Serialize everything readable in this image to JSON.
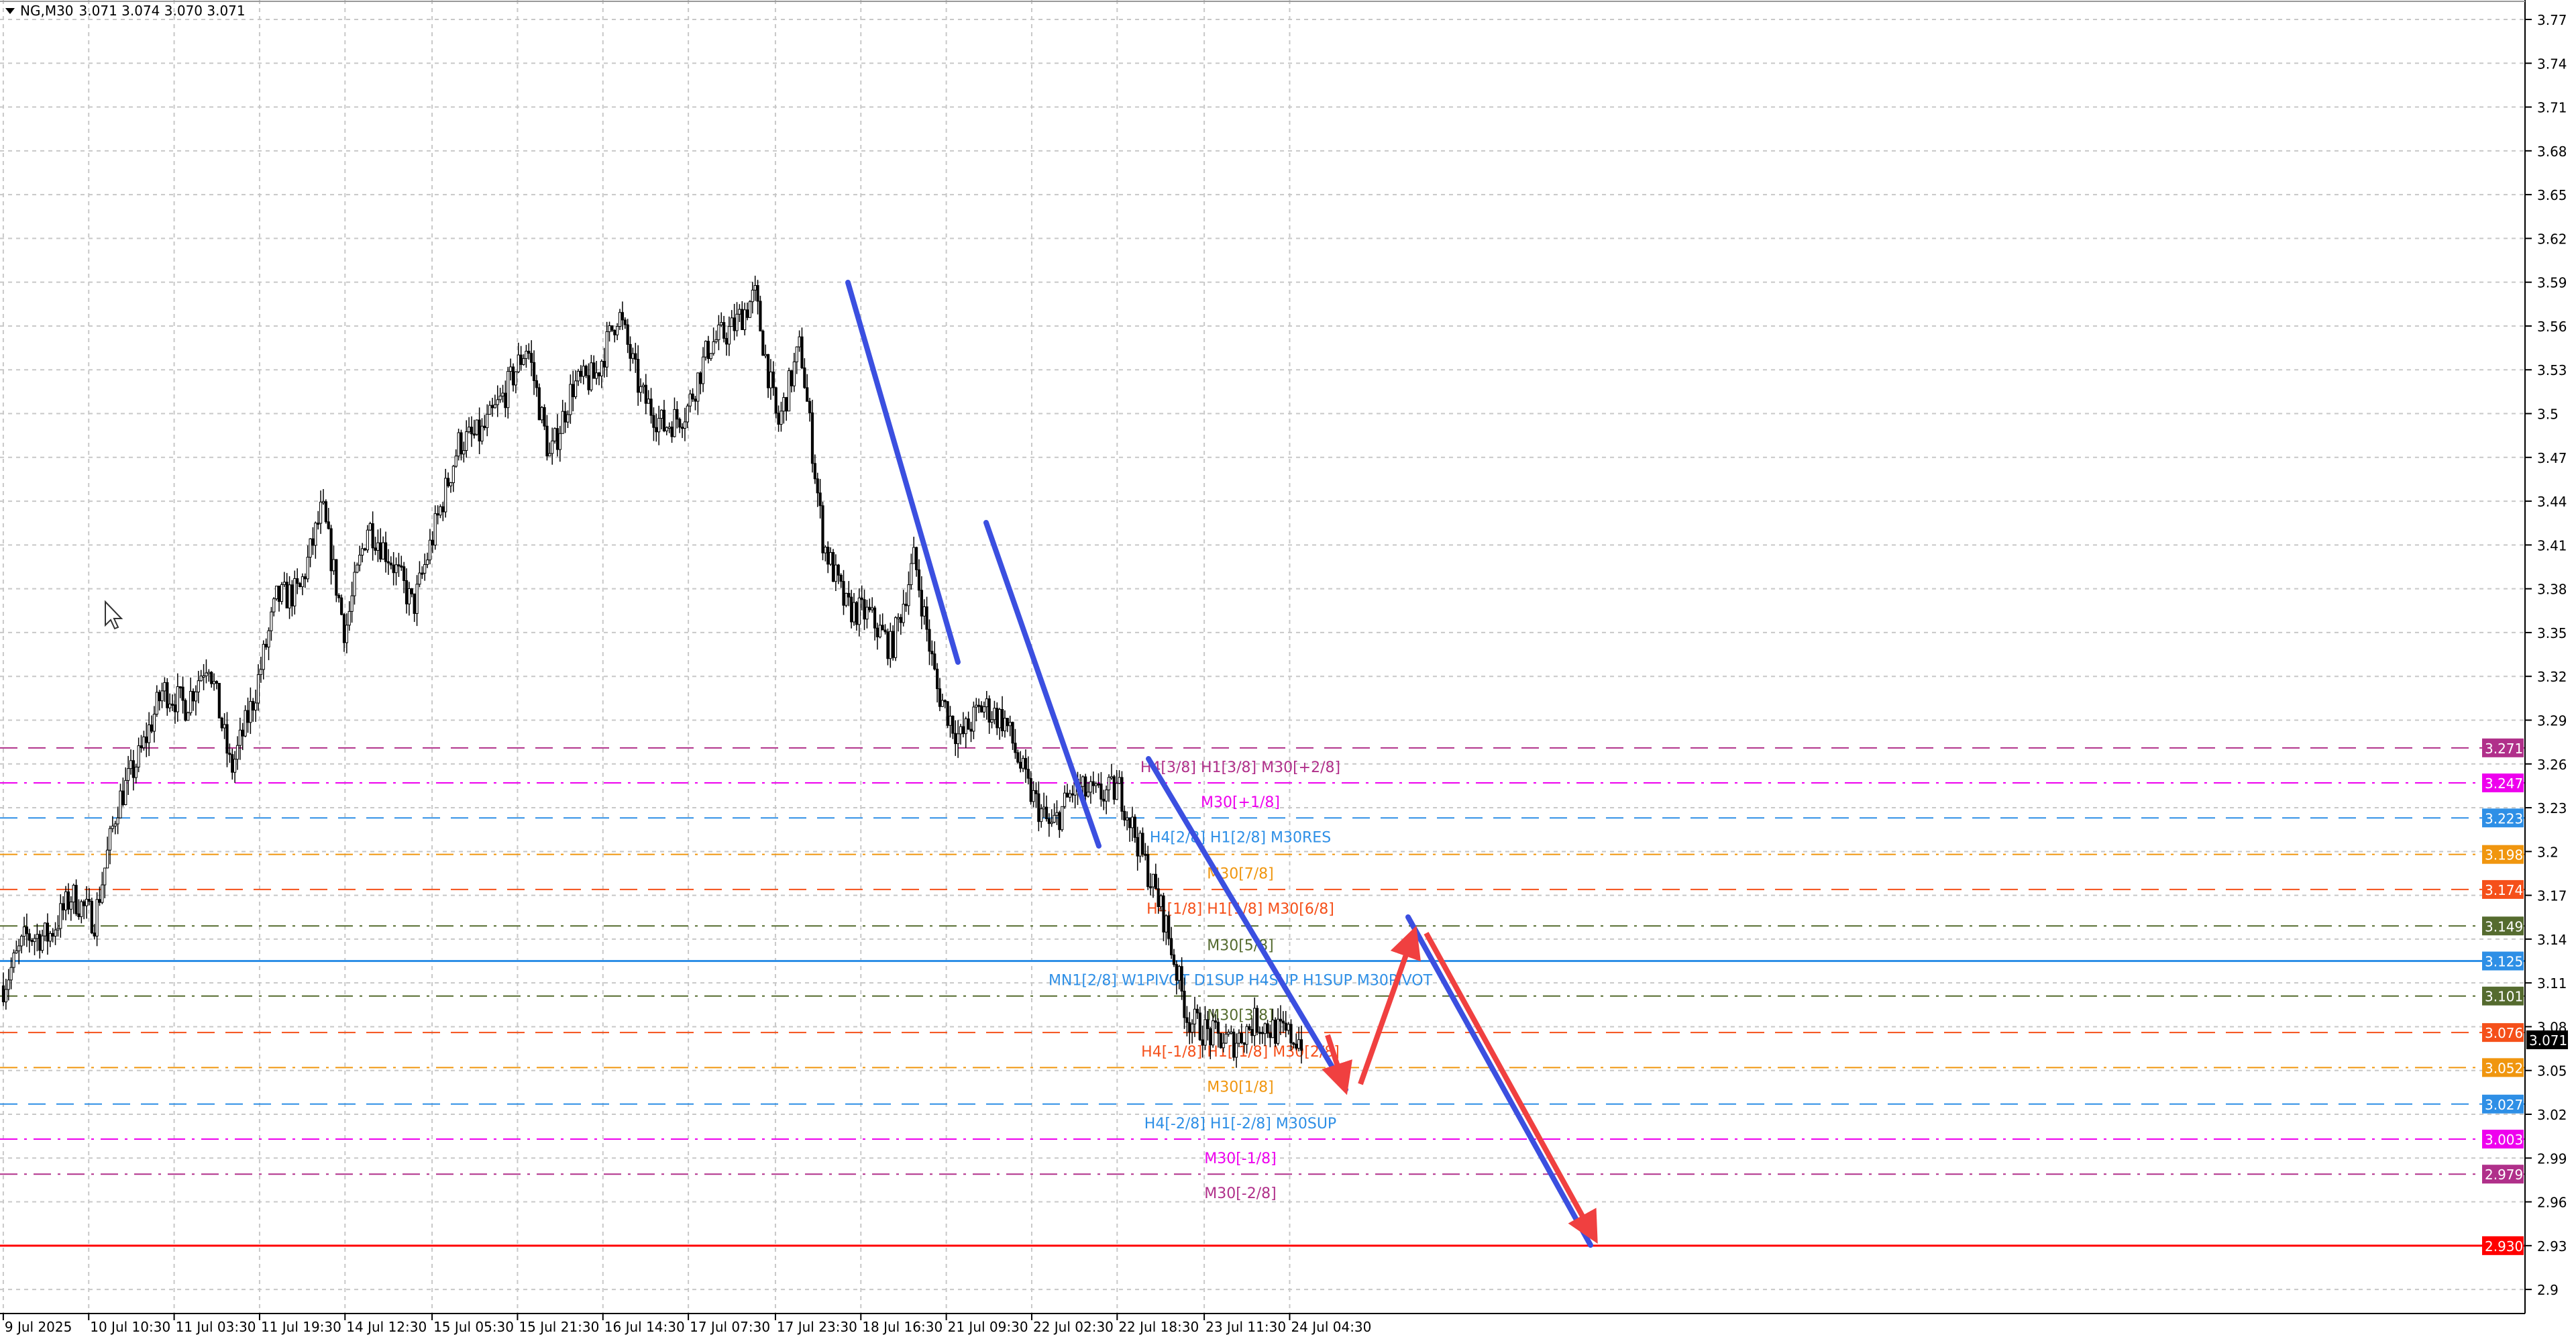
{
  "header": {
    "symbol": "NG,M30",
    "ohlc": "3.071 3.074 3.070 3.071"
  },
  "chart_data": {
    "type": "candlestick",
    "symbol": "NG",
    "timeframe": "M30",
    "ylim": [
      2.885,
      3.785
    ],
    "y_ticks": [
      3.77,
      3.74,
      3.71,
      3.68,
      3.65,
      3.62,
      3.59,
      3.56,
      3.53,
      3.5,
      3.47,
      3.44,
      3.41,
      3.38,
      3.35,
      3.32,
      3.29,
      3.26,
      3.23,
      3.2,
      3.17,
      3.14,
      3.11,
      3.08,
      3.05,
      3.02,
      2.99,
      2.96,
      2.93,
      2.9
    ],
    "x_ticks": [
      "9 Jul 2025",
      "10 Jul 10:30",
      "11 Jul 03:30",
      "11 Jul 19:30",
      "14 Jul 12:30",
      "15 Jul 05:30",
      "15 Jul 21:30",
      "16 Jul 14:30",
      "17 Jul 07:30",
      "17 Jul 23:30",
      "18 Jul 16:30",
      "21 Jul 09:30",
      "22 Jul 02:30",
      "22 Jul 18:30",
      "23 Jul 11:30",
      "24 Jul 04:30"
    ],
    "grid": true,
    "current_price": 3.071,
    "approx_close_path": [
      3.108,
      3.142,
      3.142,
      3.17,
      3.153,
      3.232,
      3.266,
      3.311,
      3.3,
      3.333,
      3.255,
      3.305,
      3.373,
      3.378,
      3.435,
      3.35,
      3.424,
      3.401,
      3.367,
      3.424,
      3.48,
      3.486,
      3.513,
      3.547,
      3.469,
      3.519,
      3.525,
      3.57,
      3.513,
      3.491,
      3.502,
      3.547,
      3.558,
      3.581,
      3.491,
      3.547,
      3.412,
      3.367,
      3.362,
      3.339,
      3.401,
      3.311,
      3.277,
      3.3,
      3.289,
      3.243,
      3.215,
      3.243,
      3.238,
      3.243,
      3.198,
      3.153,
      3.086,
      3.074,
      3.069,
      3.084,
      3.076,
      3.071
    ],
    "levels": [
      {
        "price": 3.271,
        "label": "H4[3/8] H1[3/8] M30[+2/8]",
        "color": "#b0308a",
        "style": "dash"
      },
      {
        "price": 3.247,
        "label": "M30[+1/8]",
        "color": "#ee00ee",
        "style": "dashdot"
      },
      {
        "price": 3.223,
        "label": "H4[2/8] H1[2/8] M30RES",
        "color": "#2e8fe6",
        "style": "dash"
      },
      {
        "price": 3.198,
        "label": "M30[7/8]",
        "color": "#f0960f",
        "style": "dashdot"
      },
      {
        "price": 3.174,
        "label": "H4[1/8] H1[1/8] M30[6/8]",
        "color": "#f5501a",
        "style": "dash"
      },
      {
        "price": 3.149,
        "label": "M30[5/8]",
        "color": "#556b2f",
        "style": "dashdot"
      },
      {
        "price": 3.125,
        "label": "MN1[2/8] W1PIVOT D1SUP H4SUP H1SUP M30PIVOT",
        "color": "#2e8fe6",
        "style": "solid"
      },
      {
        "price": 3.101,
        "label": "M30[3/8]",
        "color": "#556b2f",
        "style": "dashdot"
      },
      {
        "price": 3.076,
        "label": "H4[-1/8] H1[-1/8] M30[2/8]",
        "color": "#f5501a",
        "style": "dash"
      },
      {
        "price": 3.052,
        "label": "M30[1/8]",
        "color": "#f0960f",
        "style": "dashdot"
      },
      {
        "price": 3.027,
        "label": "H4[-2/8] H1[-2/8] M30SUP",
        "color": "#2e8fe6",
        "style": "dash"
      },
      {
        "price": 3.003,
        "label": "M30[-1/8]",
        "color": "#ee00ee",
        "style": "dashdot"
      },
      {
        "price": 2.979,
        "label": "M30[-2/8]",
        "color": "#b0308a",
        "style": "dashdot"
      },
      {
        "price": 2.93,
        "label": "",
        "color": "#ff0000",
        "style": "solid"
      }
    ],
    "badges": [
      {
        "price": 3.271,
        "text": "3.271",
        "color": "#b0308a"
      },
      {
        "price": 3.247,
        "text": "3.247",
        "color": "#ee00ee"
      },
      {
        "price": 3.223,
        "text": "3.223",
        "color": "#2e8fe6"
      },
      {
        "price": 3.198,
        "text": "3.198",
        "color": "#f0960f"
      },
      {
        "price": 3.174,
        "text": "3.174",
        "color": "#f5501a"
      },
      {
        "price": 3.149,
        "text": "3.149",
        "color": "#556b2f"
      },
      {
        "price": 3.125,
        "text": "3.125",
        "color": "#2e8fe6"
      },
      {
        "price": 3.101,
        "text": "3.101",
        "color": "#556b2f"
      },
      {
        "price": 3.071,
        "text": "3.071",
        "color": "#000000"
      },
      {
        "price": 3.076,
        "text": "3.076",
        "color": "#f5501a"
      },
      {
        "price": 3.052,
        "text": "3.052",
        "color": "#f0960f"
      },
      {
        "price": 3.027,
        "text": "3.027",
        "color": "#2e8fe6"
      },
      {
        "price": 3.003,
        "text": "3.003",
        "color": "#ee00ee"
      },
      {
        "price": 2.979,
        "text": "2.979",
        "color": "#b0308a"
      },
      {
        "price": 2.93,
        "text": "2.930",
        "color": "#ff0000"
      }
    ],
    "trend_color": "#3b4fe0",
    "projection_color": "#f04040"
  }
}
